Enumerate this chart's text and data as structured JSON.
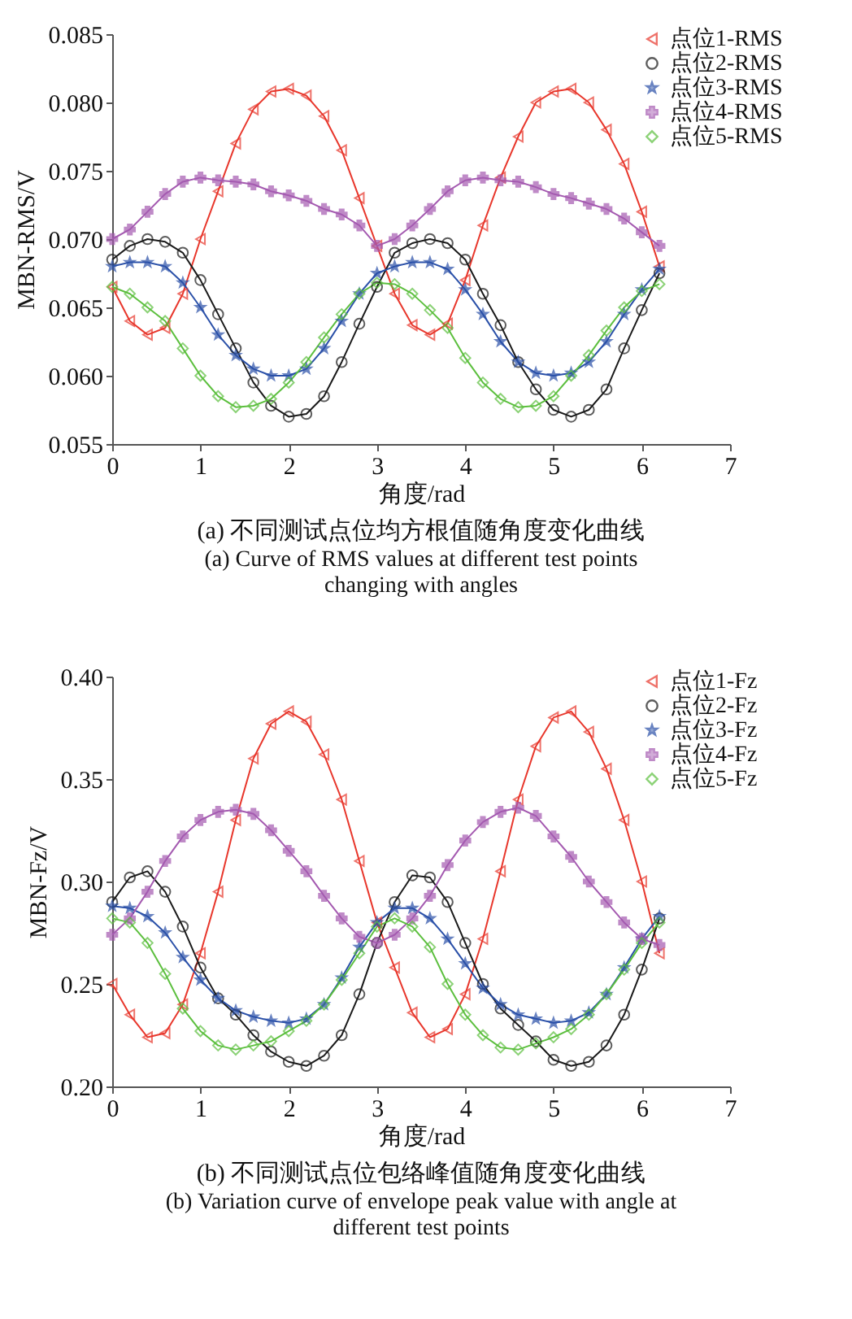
{
  "chart_data": [
    {
      "type": "line",
      "xlabel": "角度/rad",
      "ylabel": "MBN-RMS/V",
      "title": "(a) 不同测试点位均方根值随角度变化曲线",
      "subtitle": "(a) Curve of RMS values at different test points changing with angles",
      "xlim": [
        0,
        7
      ],
      "xticks": [
        0,
        1,
        2,
        3,
        4,
        5,
        6,
        7
      ],
      "ylim": [
        0.055,
        0.085
      ],
      "yticks": [
        0.055,
        {
          "value": 0.06,
          "label": "0.060"
        },
        0.065,
        {
          "value": 0.07,
          "label": "0.070"
        },
        0.075,
        {
          "value": 0.08,
          "label": "0.080"
        },
        0.085
      ],
      "legend": "top right",
      "line_style": "solid",
      "grid": false,
      "x": [
        0,
        0.2,
        0.4,
        0.6,
        0.8,
        1.0,
        1.2,
        1.4,
        1.6,
        1.8,
        2.0,
        2.2,
        2.4,
        2.6,
        2.8,
        3.0,
        3.2,
        3.4,
        3.6,
        3.8,
        4.0,
        4.2,
        4.4,
        4.6,
        4.8,
        5.0,
        5.2,
        5.4,
        5.6,
        5.8,
        6.0,
        6.2
      ],
      "series": [
        {
          "name": "点位1-RMS",
          "color": "#e8372c",
          "marker": "triangle",
          "values": [
            0.0665,
            0.064,
            0.063,
            0.0635,
            0.066,
            0.07,
            0.0735,
            0.077,
            0.0795,
            0.0808,
            0.081,
            0.0805,
            0.079,
            0.0765,
            0.073,
            0.0695,
            0.066,
            0.0637,
            0.063,
            0.0638,
            0.067,
            0.071,
            0.0745,
            0.0775,
            0.08,
            0.0808,
            0.081,
            0.08,
            0.078,
            0.0755,
            0.072,
            0.068
          ]
        },
        {
          "name": "点位2-RMS",
          "color": "#1a1a1a",
          "marker": "circle",
          "values": [
            0.0685,
            0.0695,
            0.07,
            0.0698,
            0.069,
            0.067,
            0.0645,
            0.062,
            0.0595,
            0.0578,
            0.057,
            0.0572,
            0.0585,
            0.061,
            0.0638,
            0.0665,
            0.069,
            0.0697,
            0.07,
            0.0697,
            0.0685,
            0.066,
            0.0637,
            0.061,
            0.059,
            0.0575,
            0.057,
            0.0575,
            0.059,
            0.062,
            0.0648,
            0.0675
          ]
        },
        {
          "name": "点位3-RMS",
          "color": "#2a50a8",
          "marker": "star",
          "values": [
            0.068,
            0.0683,
            0.0683,
            0.068,
            0.0668,
            0.065,
            0.063,
            0.0615,
            0.0605,
            0.06,
            0.06,
            0.0605,
            0.062,
            0.064,
            0.066,
            0.0675,
            0.068,
            0.0683,
            0.0683,
            0.0678,
            0.0663,
            0.0645,
            0.0625,
            0.061,
            0.0602,
            0.06,
            0.0602,
            0.061,
            0.0625,
            0.0645,
            0.0663,
            0.0678
          ]
        },
        {
          "name": "点位4-RMS",
          "color": "#a45ab0",
          "marker": "cross",
          "values": [
            0.07,
            0.0707,
            0.072,
            0.0733,
            0.0742,
            0.0745,
            0.0743,
            0.0742,
            0.074,
            0.0735,
            0.0732,
            0.0728,
            0.0722,
            0.0718,
            0.071,
            0.0695,
            0.07,
            0.071,
            0.0722,
            0.0735,
            0.0743,
            0.0745,
            0.0743,
            0.0742,
            0.0738,
            0.0733,
            0.073,
            0.0726,
            0.0722,
            0.0715,
            0.0705,
            0.0695
          ]
        },
        {
          "name": "点位5-RMS",
          "color": "#5cbf3e",
          "marker": "diamond",
          "values": [
            0.0665,
            0.066,
            0.065,
            0.064,
            0.062,
            0.06,
            0.0585,
            0.0577,
            0.0578,
            0.0583,
            0.0595,
            0.061,
            0.0628,
            0.0645,
            0.066,
            0.0668,
            0.0667,
            0.066,
            0.0648,
            0.0635,
            0.0613,
            0.0595,
            0.0583,
            0.0577,
            0.0578,
            0.0585,
            0.06,
            0.0615,
            0.0633,
            0.065,
            0.0662,
            0.0667
          ]
        }
      ]
    },
    {
      "type": "line",
      "xlabel": "角度/rad",
      "ylabel": "MBN-Fz/V",
      "title": "(b) 不同测试点位包络峰值随角度变化曲线",
      "subtitle": "(b) Variation curve of envelope peak value with angle at different test points",
      "xlim": [
        0,
        7
      ],
      "xticks": [
        0,
        1,
        2,
        3,
        4,
        5,
        6,
        7
      ],
      "ylim": [
        0.2,
        0.4
      ],
      "yticks": [
        {
          "value": 0.2,
          "label": "0.20"
        },
        0.25,
        {
          "value": 0.3,
          "label": "0.30"
        },
        0.35,
        {
          "value": 0.4,
          "label": "0.40"
        }
      ],
      "legend": "top right",
      "line_style": "solid",
      "grid": false,
      "x": [
        0,
        0.2,
        0.4,
        0.6,
        0.8,
        1.0,
        1.2,
        1.4,
        1.6,
        1.8,
        2.0,
        2.2,
        2.4,
        2.6,
        2.8,
        3.0,
        3.2,
        3.4,
        3.6,
        3.8,
        4.0,
        4.2,
        4.4,
        4.6,
        4.8,
        5.0,
        5.2,
        5.4,
        5.6,
        5.8,
        6.0,
        6.2
      ],
      "series": [
        {
          "name": "点位1-Fz",
          "color": "#e8372c",
          "marker": "triangle",
          "values": [
            0.25,
            0.235,
            0.224,
            0.226,
            0.24,
            0.265,
            0.295,
            0.33,
            0.36,
            0.377,
            0.383,
            0.378,
            0.362,
            0.34,
            0.31,
            0.28,
            0.258,
            0.236,
            0.224,
            0.228,
            0.245,
            0.272,
            0.305,
            0.34,
            0.366,
            0.38,
            0.383,
            0.373,
            0.355,
            0.33,
            0.3,
            0.265
          ]
        },
        {
          "name": "点位2-Fz",
          "color": "#1a1a1a",
          "marker": "circle",
          "values": [
            0.29,
            0.302,
            0.305,
            0.295,
            0.278,
            0.258,
            0.243,
            0.235,
            0.225,
            0.217,
            0.212,
            0.21,
            0.215,
            0.225,
            0.245,
            0.27,
            0.29,
            0.303,
            0.302,
            0.29,
            0.27,
            0.25,
            0.238,
            0.23,
            0.222,
            0.213,
            0.21,
            0.212,
            0.22,
            0.235,
            0.257,
            0.282
          ]
        },
        {
          "name": "点位3-Fz",
          "color": "#2a50a8",
          "marker": "star",
          "values": [
            0.288,
            0.287,
            0.283,
            0.275,
            0.263,
            0.252,
            0.243,
            0.237,
            0.234,
            0.232,
            0.231,
            0.233,
            0.24,
            0.253,
            0.268,
            0.28,
            0.287,
            0.287,
            0.282,
            0.272,
            0.26,
            0.248,
            0.24,
            0.235,
            0.233,
            0.231,
            0.232,
            0.236,
            0.245,
            0.258,
            0.272,
            0.283
          ]
        },
        {
          "name": "点位4-Fz",
          "color": "#a45ab0",
          "marker": "cross",
          "values": [
            0.274,
            0.282,
            0.295,
            0.31,
            0.322,
            0.33,
            0.334,
            0.335,
            0.333,
            0.325,
            0.315,
            0.305,
            0.293,
            0.282,
            0.273,
            0.27,
            0.274,
            0.282,
            0.293,
            0.308,
            0.32,
            0.329,
            0.334,
            0.336,
            0.332,
            0.322,
            0.312,
            0.3,
            0.29,
            0.28,
            0.272,
            0.269
          ]
        },
        {
          "name": "点位5-Fz",
          "color": "#5cbf3e",
          "marker": "diamond",
          "values": [
            0.282,
            0.28,
            0.27,
            0.255,
            0.238,
            0.227,
            0.22,
            0.218,
            0.22,
            0.222,
            0.227,
            0.232,
            0.24,
            0.252,
            0.265,
            0.278,
            0.282,
            0.278,
            0.268,
            0.25,
            0.235,
            0.225,
            0.219,
            0.218,
            0.221,
            0.224,
            0.228,
            0.235,
            0.245,
            0.257,
            0.27,
            0.28
          ]
        }
      ]
    }
  ]
}
